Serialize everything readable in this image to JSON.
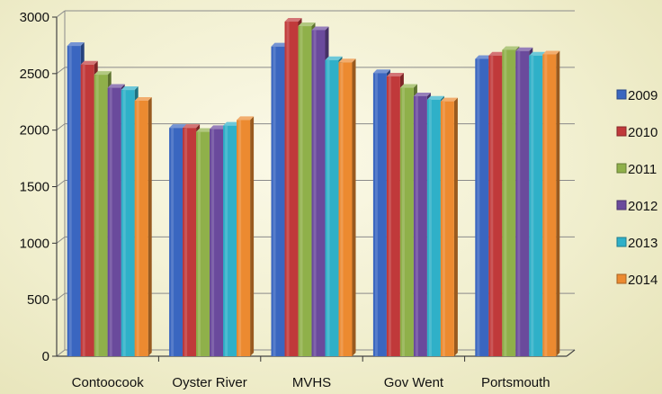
{
  "chart_data": {
    "type": "bar",
    "title": "",
    "xlabel": "",
    "ylabel": "",
    "categories": [
      "Contoocook",
      "Oyster River",
      "MVHS",
      "Gov Went",
      "Portsmouth"
    ],
    "ylim": [
      0,
      3000
    ],
    "yticks": [
      "0",
      "500",
      "1000",
      "1500",
      "2000",
      "2500",
      "3000"
    ],
    "grid": true,
    "legend_position": "right",
    "series": [
      {
        "name": "2009",
        "color": "#3a66c0",
        "values": [
          2745,
          2020,
          2740,
          2505,
          2630
        ]
      },
      {
        "name": "2010",
        "color": "#c0393a",
        "values": [
          2580,
          2020,
          2960,
          2475,
          2660
        ]
      },
      {
        "name": "2011",
        "color": "#8fb04a",
        "values": [
          2490,
          1985,
          2920,
          2375,
          2710
        ]
      },
      {
        "name": "2012",
        "color": "#6a4a9c",
        "values": [
          2375,
          2010,
          2885,
          2300,
          2700
        ]
      },
      {
        "name": "2013",
        "color": "#2fb0c8",
        "values": [
          2355,
          2040,
          2620,
          2270,
          2660
        ]
      },
      {
        "name": "2014",
        "color": "#ec8a30",
        "values": [
          2260,
          2090,
          2600,
          2255,
          2670
        ]
      }
    ]
  }
}
